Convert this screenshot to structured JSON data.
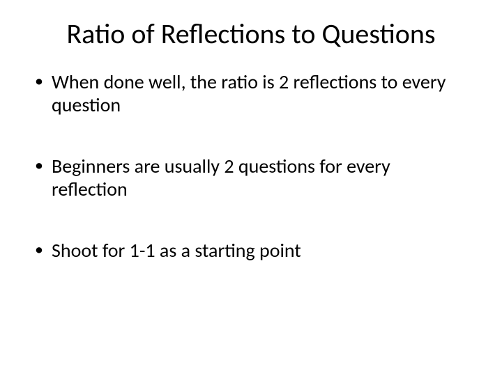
{
  "slide": {
    "title": "Ratio of Reflections to Questions",
    "bullets": [
      "When done well, the ratio is 2 reflections to every question",
      "Beginners are usually 2 questions for every reflection",
      "Shoot for 1-1 as a starting point"
    ],
    "colors": {
      "background": "#ffffff",
      "text": "#000000"
    },
    "typography": {
      "title_fontsize": 40,
      "body_fontsize": 28,
      "font_family": "Calibri"
    }
  }
}
